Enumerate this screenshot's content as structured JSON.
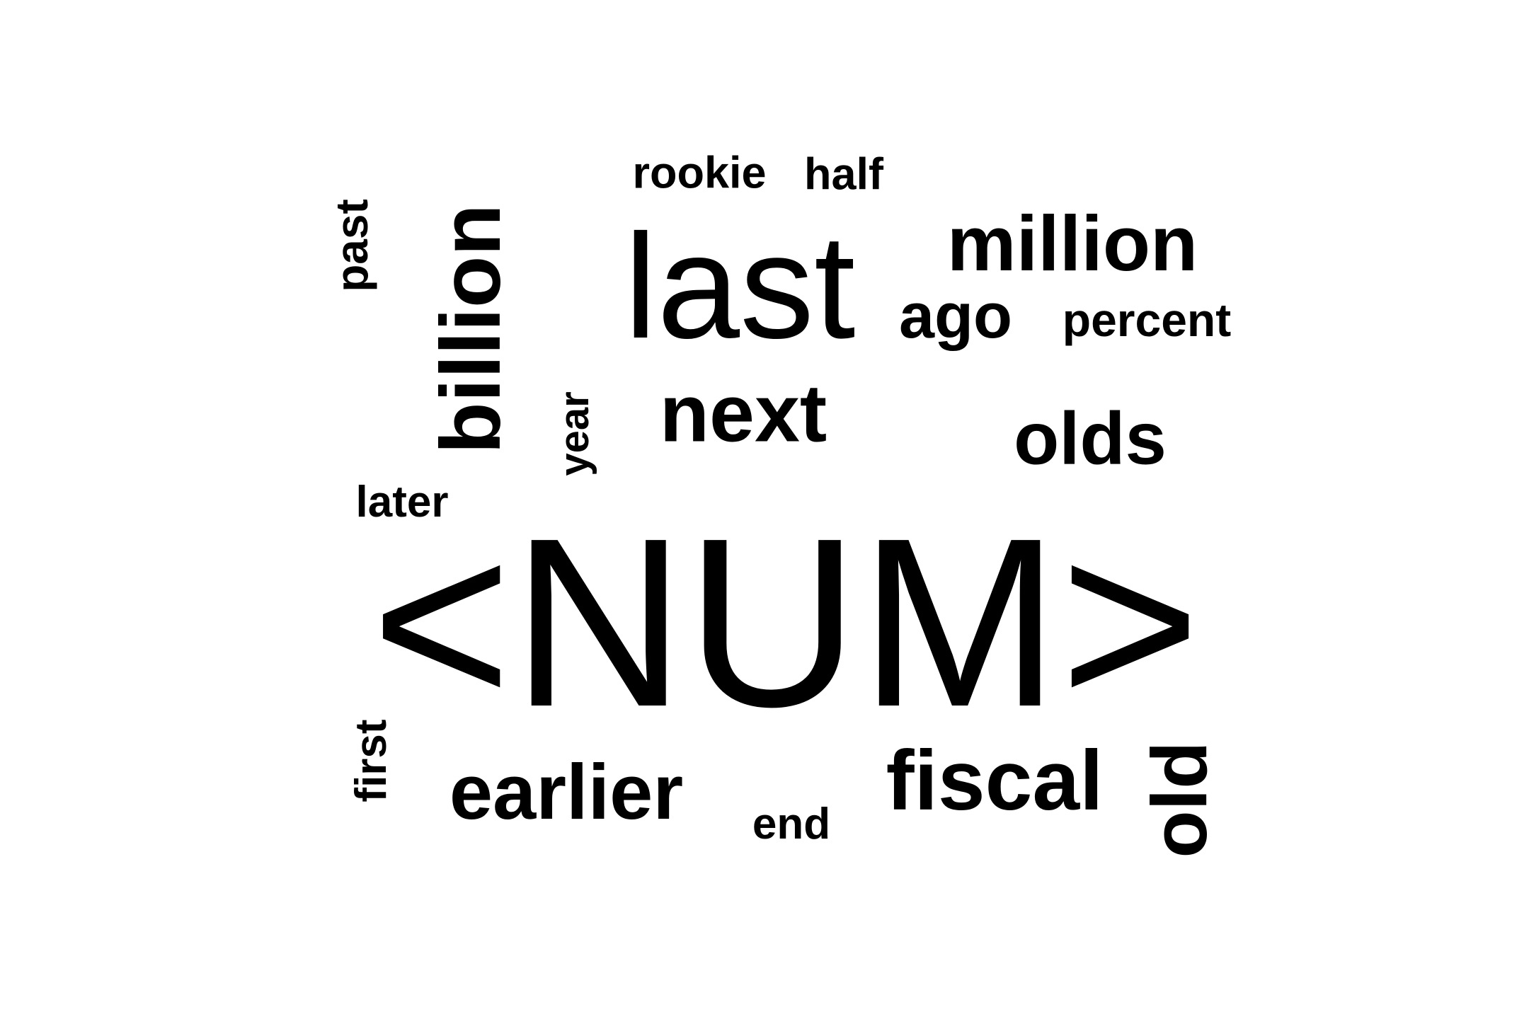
{
  "word_cloud": {
    "words": {
      "num": "<NUM>",
      "last": "last",
      "million": "million",
      "billion": "billion",
      "next": "next",
      "olds": "olds",
      "ago": "ago",
      "percent": "percent",
      "rookie": "rookie",
      "half": "half",
      "past": "past",
      "year": "year",
      "later": "later",
      "first": "first",
      "earlier": "earlier",
      "end": "end",
      "fiscal": "fiscal",
      "old": "old"
    },
    "colors": {
      "background": "#ffffff",
      "text": "#000000"
    }
  }
}
